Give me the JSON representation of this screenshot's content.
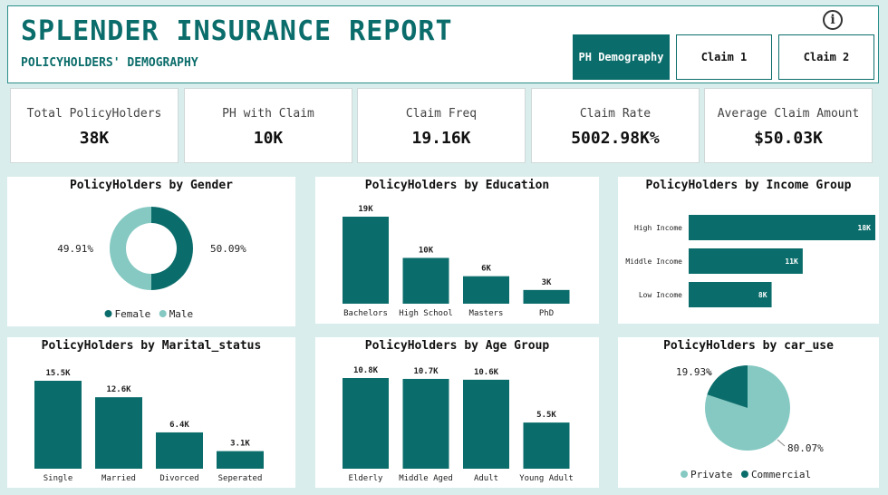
{
  "header": {
    "title": "SPLENDER INSURANCE REPORT",
    "subtitle": "POLICYHOLDERS' DEMOGRAPHY",
    "nav": [
      {
        "label": "PH Demography",
        "active": true
      },
      {
        "label": "Claim 1",
        "active": false
      },
      {
        "label": "Claim 2",
        "active": false
      }
    ],
    "info_icon": "i"
  },
  "kpis": [
    {
      "label": "Total PolicyHolders",
      "value": "38K"
    },
    {
      "label": "PH with Claim",
      "value": "10K"
    },
    {
      "label": "Claim Freq",
      "value": "19.16K"
    },
    {
      "label": "Claim Rate",
      "value": "5002.98K%"
    },
    {
      "label": "Average Claim Amount",
      "value": "$50.03K"
    }
  ],
  "colors": {
    "dark": "#0b6d6b",
    "light": "#85c9c2",
    "text": "#222222"
  },
  "chart_data": [
    {
      "type": "donut",
      "title": "PolicyHolders by Gender",
      "categories": [
        "Female",
        "Male"
      ],
      "values": [
        50.09,
        49.91
      ],
      "labels": [
        "50.09%",
        "49.91%"
      ],
      "colors": [
        "#0b6d6b",
        "#85c9c2"
      ],
      "legend": [
        "Female",
        "Male"
      ],
      "legend_position": "bottom"
    },
    {
      "type": "bar",
      "title": "PolicyHolders by Education",
      "categories": [
        "Bachelors",
        "High School",
        "Masters",
        "PhD"
      ],
      "values": [
        19,
        10,
        6,
        3
      ],
      "labels": [
        "19K",
        "10K",
        "6K",
        "3K"
      ]
    },
    {
      "type": "hbar",
      "title": "PolicyHolders by Income Group",
      "categories": [
        "High Income",
        "Middle Income",
        "Low Income"
      ],
      "values": [
        18,
        11,
        8
      ],
      "labels": [
        "18K",
        "11K",
        "8K"
      ]
    },
    {
      "type": "bar",
      "title": "PolicyHolders by Marital_status",
      "categories": [
        "Single",
        "Married",
        "Divorced",
        "Seperated"
      ],
      "values": [
        15.5,
        12.6,
        6.4,
        3.1
      ],
      "labels": [
        "15.5K",
        "12.6K",
        "6.4K",
        "3.1K"
      ]
    },
    {
      "type": "bar",
      "title": "PolicyHolders by Age Group",
      "categories": [
        "Elderly",
        "Middle Aged",
        "Adult",
        "Young Adult"
      ],
      "values": [
        10.8,
        10.7,
        10.6,
        5.5
      ],
      "labels": [
        "10.8K",
        "10.7K",
        "10.6K",
        "5.5K"
      ]
    },
    {
      "type": "pie",
      "title": "PolicyHolders by car_use",
      "categories": [
        "Private",
        "Commercial"
      ],
      "values": [
        80.07,
        19.93
      ],
      "labels": [
        "80.07%",
        "19.93%"
      ],
      "colors": [
        "#85c9c2",
        "#0b6d6b"
      ],
      "legend": [
        "Private",
        "Commercial"
      ],
      "legend_position": "bottom"
    }
  ]
}
